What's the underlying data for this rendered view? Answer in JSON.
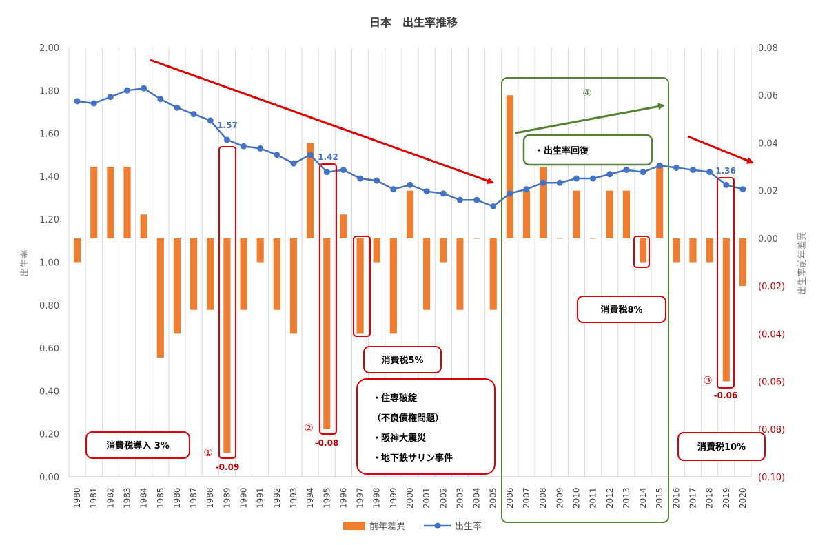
{
  "chart_data": {
    "type": "bar+line",
    "title": "日本　出生率推移",
    "x": [
      "1980",
      "1981",
      "1982",
      "1983",
      "1984",
      "1985",
      "1986",
      "1987",
      "1988",
      "1989",
      "1990",
      "1991",
      "1992",
      "1993",
      "1994",
      "1995",
      "1996",
      "1997",
      "1998",
      "1999",
      "2000",
      "2001",
      "2002",
      "2003",
      "2004",
      "2005",
      "2006",
      "2007",
      "2008",
      "2009",
      "2010",
      "2011",
      "2012",
      "2013",
      "2014",
      "2015",
      "2016",
      "2017",
      "2018",
      "2019",
      "2020"
    ],
    "series": [
      {
        "name": "前年差異",
        "type": "bar",
        "axis": "right",
        "color": "#ed7d31",
        "values": [
          -0.01,
          0.03,
          0.03,
          0.03,
          0.01,
          -0.05,
          -0.04,
          -0.03,
          -0.03,
          -0.09,
          -0.03,
          -0.01,
          -0.03,
          -0.04,
          0.04,
          -0.08,
          0.01,
          -0.04,
          -0.01,
          -0.04,
          0.02,
          -0.03,
          -0.01,
          -0.03,
          0.0,
          -0.03,
          0.06,
          0.02,
          0.03,
          0.0,
          0.02,
          0.0,
          0.02,
          0.02,
          -0.01,
          0.03,
          -0.01,
          -0.01,
          -0.01,
          -0.06,
          -0.02
        ]
      },
      {
        "name": "出生率",
        "type": "line",
        "axis": "left",
        "color": "#4472c4",
        "values": [
          1.75,
          1.74,
          1.77,
          1.8,
          1.81,
          1.76,
          1.72,
          1.69,
          1.66,
          1.57,
          1.54,
          1.53,
          1.5,
          1.46,
          1.5,
          1.42,
          1.43,
          1.39,
          1.38,
          1.34,
          1.36,
          1.33,
          1.32,
          1.29,
          1.29,
          1.26,
          1.32,
          1.34,
          1.37,
          1.37,
          1.39,
          1.39,
          1.41,
          1.43,
          1.42,
          1.45,
          1.44,
          1.43,
          1.42,
          1.36,
          1.34
        ]
      }
    ],
    "y_left": {
      "label": "出生率",
      "min": 0,
      "max": 2.0,
      "ticks": [
        "0.00",
        "0.20",
        "0.40",
        "0.60",
        "0.80",
        "1.00",
        "1.20",
        "1.40",
        "1.60",
        "1.80",
        "2.00"
      ]
    },
    "y_right": {
      "label": "出生率前年差異",
      "min": -0.1,
      "max": 0.08,
      "ticks": [
        "(0.10)",
        "(0.08)",
        "(0.06)",
        "(0.04)",
        "(0.02)",
        "0.00",
        "0.02",
        "0.04",
        "0.06",
        "0.08"
      ]
    },
    "grid": "vertical",
    "legend_position": "bottom",
    "line_labels": [
      {
        "year": "1989",
        "text": "1.57"
      },
      {
        "year": "1995",
        "text": "1.42"
      },
      {
        "year": "2019",
        "text": "1.36"
      }
    ],
    "bar_labels": [
      {
        "year": "1989",
        "text": "-0.09"
      },
      {
        "year": "1995",
        "text": "-0.08"
      },
      {
        "year": "2019",
        "text": "-0.06"
      }
    ],
    "annotations": {
      "callout1": "消費税導入 3%",
      "marker1": "①",
      "callout2_lines": [
        "・住専破綻",
        "（不良債権問題）",
        "・阪神大震災",
        "・地下鉄サリン事件"
      ],
      "marker2": "②",
      "callout5": "消費税5%",
      "marker4": "④",
      "callout_recovery": "・出生率回復",
      "callout8": "消費税8%",
      "marker3": "③",
      "callout10": "消費税10%"
    }
  },
  "colors": {
    "bar": "#ed7d31",
    "line": "#4472c4",
    "callout_border": "#e00000",
    "highlight_box": "#548235",
    "trend_arrow_red": "#e00000",
    "trend_arrow_green": "#548235"
  }
}
